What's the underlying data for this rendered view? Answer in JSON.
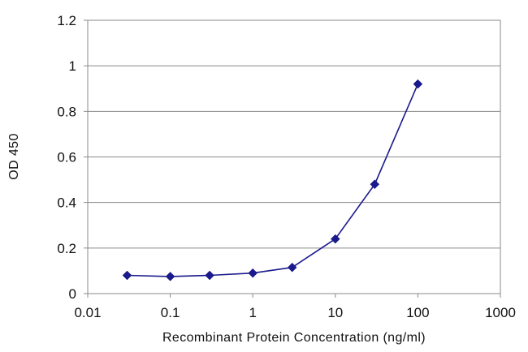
{
  "chart_data": {
    "type": "line",
    "title": "",
    "xlabel": "Recombinant Protein Concentration (ng/ml)",
    "ylabel": "OD 450",
    "x_scale": "log",
    "xlim": [
      0.01,
      1000
    ],
    "ylim": [
      0,
      1.2
    ],
    "x_ticks": [
      0.01,
      0.1,
      1,
      10,
      100,
      1000
    ],
    "x_tick_labels": [
      "0.01",
      "0.1",
      "1",
      "10",
      "100",
      "1000"
    ],
    "y_ticks": [
      0,
      0.2,
      0.4,
      0.6,
      0.8,
      1,
      1.2
    ],
    "y_tick_labels": [
      "0",
      "0.2",
      "0.4",
      "0.6",
      "0.8",
      "1",
      "1.2"
    ],
    "grid": "horizontal",
    "series": [
      {
        "x": [
          0.03,
          0.1,
          0.3,
          1,
          3,
          10,
          30,
          100
        ],
        "y": [
          0.08,
          0.075,
          0.08,
          0.09,
          0.115,
          0.24,
          0.48,
          0.92
        ],
        "color": "#1a1a8c",
        "marker": "diamond"
      }
    ]
  }
}
